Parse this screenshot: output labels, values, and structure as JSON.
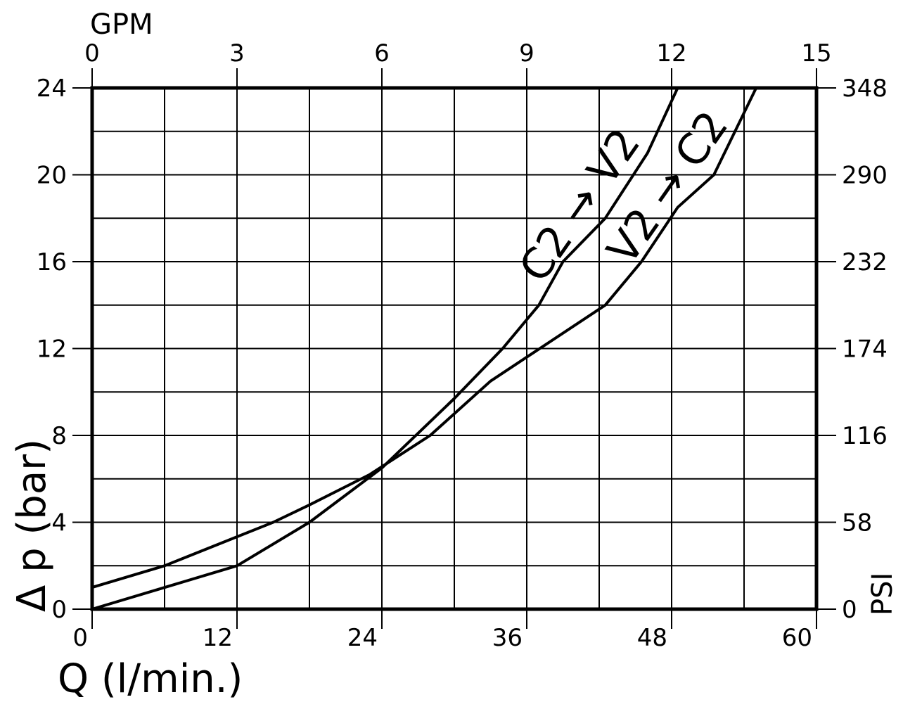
{
  "chart_data": {
    "type": "line",
    "x_axis": {
      "label": "Q (l/min.)",
      "range": [
        0,
        60
      ],
      "ticks": [
        "0",
        "12",
        "24",
        "36",
        "48",
        "60"
      ],
      "grid_step": 6
    },
    "x2_axis": {
      "label": "GPM",
      "range": [
        0,
        15
      ],
      "ticks": [
        "0",
        "3",
        "6",
        "9",
        "12",
        "15"
      ]
    },
    "y_axis": {
      "label": "Δ p (bar)",
      "range": [
        0,
        24
      ],
      "ticks": [
        "0",
        "4",
        "8",
        "12",
        "16",
        "20",
        "24"
      ],
      "grid_step": 2
    },
    "y2_axis": {
      "label": "PSI",
      "range": [
        0,
        348
      ],
      "ticks": [
        "0",
        "58",
        "116",
        "174",
        "232",
        "290",
        "348"
      ]
    },
    "grid": true,
    "series": [
      {
        "name": "C2 → V2",
        "points": [
          [
            0,
            0
          ],
          [
            12,
            2
          ],
          [
            18,
            4
          ],
          [
            24,
            6.5
          ],
          [
            30,
            9.7
          ],
          [
            34,
            12
          ],
          [
            37,
            14
          ],
          [
            39,
            16
          ],
          [
            42.5,
            18
          ],
          [
            46,
            21
          ],
          [
            48.5,
            24
          ]
        ]
      },
      {
        "name": "V2 → C2",
        "points": [
          [
            0,
            1
          ],
          [
            6,
            2
          ],
          [
            15,
            4
          ],
          [
            18,
            4.8
          ],
          [
            23,
            6.2
          ],
          [
            28,
            8
          ],
          [
            33,
            10.5
          ],
          [
            42.5,
            14
          ],
          [
            45.5,
            16
          ],
          [
            48.5,
            18.5
          ],
          [
            51.5,
            20
          ],
          [
            55,
            24
          ]
        ]
      }
    ]
  }
}
